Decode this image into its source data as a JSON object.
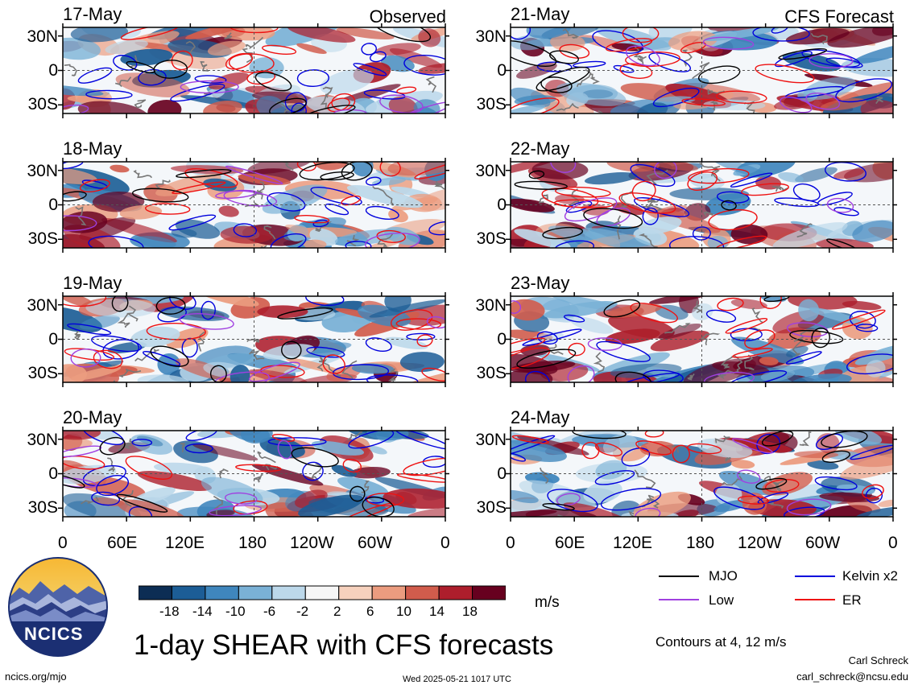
{
  "header": {
    "observed_label": "Observed",
    "forecast_label": "CFS Forecast"
  },
  "chart_data": {
    "type": "heatmap",
    "title": "1-day SHEAR with CFS forecasts",
    "units": "m/s",
    "contour_note": "Contours at 4, 12 m/s",
    "lat_ticks": [
      "30N",
      "0",
      "30S"
    ],
    "lon_ticks": [
      "0",
      "60E",
      "120E",
      "180",
      "120W",
      "60W",
      "0"
    ],
    "panels": [
      {
        "date": "17-May",
        "column": "left"
      },
      {
        "date": "18-May",
        "column": "left"
      },
      {
        "date": "19-May",
        "column": "left"
      },
      {
        "date": "20-May",
        "column": "left"
      },
      {
        "date": "21-May",
        "column": "right"
      },
      {
        "date": "22-May",
        "column": "right"
      },
      {
        "date": "23-May",
        "column": "right"
      },
      {
        "date": "24-May",
        "column": "right"
      }
    ],
    "colorbar": {
      "ticks": [
        "-18",
        "-14",
        "-10",
        "-6",
        "-2",
        "2",
        "6",
        "10",
        "14",
        "18"
      ],
      "colors": [
        "#0c2d54",
        "#1c5d96",
        "#3f86bd",
        "#7ab1d6",
        "#bcd8ea",
        "#f6f6f6",
        "#f6d1bd",
        "#eb9c7f",
        "#d15c4c",
        "#ad1e2c",
        "#67001f"
      ]
    },
    "legend": [
      {
        "name": "MJO",
        "color": "#000000"
      },
      {
        "name": "Kelvin x2",
        "color": "#0000dd"
      },
      {
        "name": "Low",
        "color": "#a040e0"
      },
      {
        "name": "ER",
        "color": "#ee1111"
      }
    ]
  },
  "footer": {
    "logo_text": "NCICS",
    "left_link": "ncics.org/mjo",
    "timestamp": "Wed 2025-05-21 1017 UTC",
    "author": "Carl Schreck",
    "email": "carl_schreck@ncsu.edu"
  }
}
